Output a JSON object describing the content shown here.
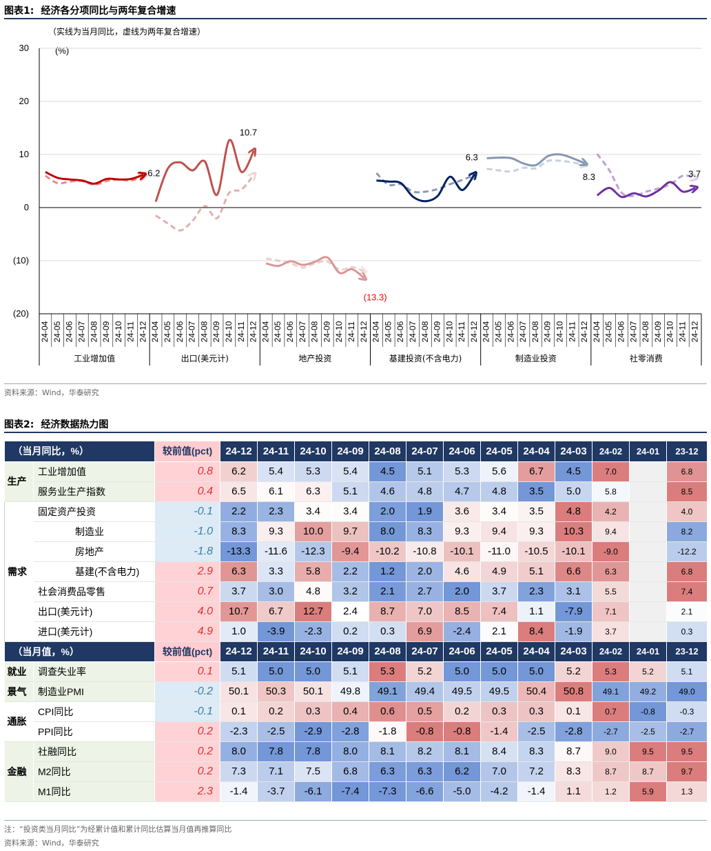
{
  "figure1": {
    "title_num": "图表1:",
    "title": "经济各分项同比与两年复合增速",
    "note": "（实线为当月同比，虚线为两年复合增速）",
    "source": "资料来源：Wind，华泰研究"
  },
  "figure2": {
    "title_num": "图表2:",
    "title": "经济数据热力图",
    "footnote": "注：“投资类当月同比”为经累计值和累计同比估算当月值再推算同比",
    "source": "资料来源：Wind，华泰研究"
  },
  "chart_data": [
    {
      "type": "line",
      "title": "经济各分项同比与两年复合增速",
      "subtitle": "（实线为当月同比，虚线为两年复合增速）",
      "ylabel": "(%)",
      "ylim": [
        -20,
        30
      ],
      "y_ticks": [
        30,
        20,
        10,
        0,
        -10,
        -20
      ],
      "y_tick_labels": [
        "30",
        "20",
        "10",
        "0",
        "(10)",
        "(20)"
      ],
      "months": [
        "24-04",
        "24-05",
        "24-06",
        "24-07",
        "24-08",
        "24-09",
        "24-10",
        "24-11",
        "24-12"
      ],
      "groups": [
        {
          "name": "工业增加值",
          "color": "#c00000",
          "solid": [
            6.7,
            5.6,
            5.3,
            5.1,
            4.5,
            5.4,
            5.3,
            5.4,
            6.2
          ],
          "dashed": [
            6.0,
            4.6,
            4.9,
            5.0,
            4.3,
            5.0,
            5.3,
            5.1,
            5.9
          ],
          "end_label": "6.2",
          "end_label_color": "#000000"
        },
        {
          "name": "出口(美元计)",
          "color": "#c0504d",
          "solid": [
            1.1,
            7.4,
            8.5,
            7.0,
            8.7,
            2.4,
            12.7,
            6.7,
            10.7
          ],
          "dashed": [
            -1.5,
            -3.0,
            -4.3,
            -2.5,
            0.3,
            -2.0,
            2.8,
            3.4,
            6.2
          ],
          "end_label": "10.7",
          "end_label_color": "#000000"
        },
        {
          "name": "地产投资",
          "color": "#d99694",
          "solid": [
            -10.5,
            -11.0,
            -10.1,
            -10.8,
            -10.2,
            -9.4,
            -12.3,
            -11.6,
            -13.3
          ],
          "dashed": [
            -9.6,
            -10.0,
            -10.5,
            -11.3,
            -10.5,
            -10.2,
            -11.7,
            -11.2,
            -12.0
          ],
          "end_label": "(13.3)",
          "end_label_color": "#ff0000"
        },
        {
          "name": "基建投资(不含电力)",
          "color": "#002060",
          "solid": [
            5.1,
            4.9,
            4.6,
            2.0,
            1.2,
            2.2,
            5.8,
            3.3,
            6.3
          ],
          "dashed": [
            6.5,
            4.3,
            4.4,
            3.0,
            3.0,
            3.5,
            4.4,
            5.2,
            6.1
          ],
          "end_label": "6.3",
          "end_label_color": "#000000"
        },
        {
          "name": "制造业投资",
          "color": "#8497b0",
          "solid": [
            9.3,
            9.4,
            9.3,
            8.3,
            8.0,
            9.7,
            10.0,
            9.3,
            8.3
          ],
          "dashed": [
            7.3,
            7.0,
            6.8,
            7.5,
            7.4,
            8.8,
            8.8,
            8.5,
            8.0
          ],
          "end_label": "8.3",
          "end_label_color": "#000000"
        },
        {
          "name": "社零消费",
          "color": "#7030a0",
          "solid": [
            2.3,
            3.7,
            2.0,
            2.7,
            2.1,
            3.2,
            4.8,
            3.0,
            3.7
          ],
          "dashed": [
            10.1,
            7.0,
            2.8,
            2.2,
            3.0,
            3.6,
            4.4,
            6.0,
            5.6
          ],
          "end_label": "3.7",
          "end_label_color": "#000000"
        }
      ]
    },
    {
      "type": "heatmap",
      "title": "经济数据热力图",
      "columns": [
        "24-12",
        "24-11",
        "24-10",
        "24-09",
        "24-08",
        "24-07",
        "24-06",
        "24-05",
        "24-04",
        "24-03",
        "24-02",
        "24-01",
        "23-12"
      ],
      "sections": [
        {
          "caption": "（当月同比，%）",
          "delta_header": "较前值(pct)",
          "groups": [
            {
              "name": "生产",
              "style": "prod",
              "rows": [
                {
                  "label": "工业增加值",
                  "indent": 1,
                  "delta": "0.8",
                  "values": [
                    "6.2",
                    "5.4",
                    "5.3",
                    "5.4",
                    "4.5",
                    "5.1",
                    "5.3",
                    "5.6",
                    "6.7",
                    "4.5",
                    "7.0",
                    "",
                    "6.8"
                  ]
                },
                {
                  "label": "服务业生产指数",
                  "indent": 1,
                  "delta": "0.4",
                  "values": [
                    "6.5",
                    "6.1",
                    "6.3",
                    "5.1",
                    "4.6",
                    "4.8",
                    "4.7",
                    "4.8",
                    "3.5",
                    "5.0",
                    "5.8",
                    "",
                    "8.5"
                  ]
                }
              ]
            },
            {
              "name": "需求",
              "style": "dem",
              "rows": [
                {
                  "label": "固定资产投资",
                  "indent": 1,
                  "delta": "-0.1",
                  "values": [
                    "2.2",
                    "2.3",
                    "3.4",
                    "3.4",
                    "2.0",
                    "1.9",
                    "3.6",
                    "3.4",
                    "3.5",
                    "4.8",
                    "4.2",
                    "",
                    "4.0"
                  ]
                },
                {
                  "label": "制造业",
                  "indent": 2,
                  "delta": "-1.0",
                  "values": [
                    "8.3",
                    "9.3",
                    "10.0",
                    "9.7",
                    "8.0",
                    "8.3",
                    "9.3",
                    "9.4",
                    "9.3",
                    "10.3",
                    "9.4",
                    "",
                    "8.2"
                  ]
                },
                {
                  "label": "房地产",
                  "indent": 2,
                  "delta": "-1.8",
                  "values": [
                    "-13.3",
                    "-11.6",
                    "-12.3",
                    "-9.4",
                    "-10.2",
                    "-10.8",
                    "-10.1",
                    "-11.0",
                    "-10.5",
                    "-10.1",
                    "-9.0",
                    "",
                    "-12.2"
                  ]
                },
                {
                  "label": "基建(不含电力)",
                  "indent": 2,
                  "delta": "2.9",
                  "values": [
                    "6.3",
                    "3.3",
                    "5.8",
                    "2.2",
                    "1.2",
                    "2.0",
                    "4.6",
                    "4.9",
                    "5.1",
                    "6.6",
                    "6.3",
                    "",
                    "6.8"
                  ]
                },
                {
                  "label": "社会消费品零售",
                  "indent": 1,
                  "delta": "0.7",
                  "values": [
                    "3.7",
                    "3.0",
                    "4.8",
                    "3.2",
                    "2.1",
                    "2.7",
                    "2.0",
                    "3.7",
                    "2.3",
                    "3.1",
                    "5.5",
                    "",
                    "7.4"
                  ]
                },
                {
                  "label": "出口(美元计)",
                  "indent": 1,
                  "delta": "4.0",
                  "values": [
                    "10.7",
                    "6.7",
                    "12.7",
                    "2.4",
                    "8.7",
                    "7.0",
                    "8.5",
                    "7.4",
                    "1.1",
                    "-7.9",
                    "7.1",
                    "",
                    "2.1"
                  ]
                },
                {
                  "label": "进口(美元计)",
                  "indent": 1,
                  "delta": "4.9",
                  "values": [
                    "1.0",
                    "-3.9",
                    "-2.3",
                    "0.2",
                    "0.3",
                    "6.9",
                    "-2.4",
                    "2.1",
                    "8.4",
                    "-1.9",
                    "3.7",
                    "",
                    "0.3"
                  ]
                }
              ]
            }
          ]
        },
        {
          "caption": "（当月值，%）",
          "delta_header": "较前值(pct)",
          "groups": [
            {
              "name": "就业",
              "style": "prod",
              "rows": [
                {
                  "label": "调查失业率",
                  "indent": 1,
                  "delta": "0.1",
                  "values": [
                    "5.1",
                    "5.0",
                    "5.0",
                    "5.1",
                    "5.3",
                    "5.2",
                    "5.0",
                    "5.0",
                    "5.0",
                    "5.2",
                    "5.3",
                    "5.2",
                    "5.1"
                  ]
                }
              ]
            },
            {
              "name": "景气",
              "style": "prod",
              "rows": [
                {
                  "label": "制造业PMI",
                  "indent": 1,
                  "delta": "-0.2",
                  "values": [
                    "50.1",
                    "50.3",
                    "50.1",
                    "49.8",
                    "49.1",
                    "49.4",
                    "49.5",
                    "49.5",
                    "50.4",
                    "50.8",
                    "49.1",
                    "49.2",
                    "49.0"
                  ]
                }
              ]
            },
            {
              "name": "通胀",
              "style": "mix",
              "rows": [
                {
                  "label": "CPI同比",
                  "indent": 1,
                  "delta": "-0.1",
                  "values": [
                    "0.1",
                    "0.2",
                    "0.3",
                    "0.4",
                    "0.6",
                    "0.5",
                    "0.2",
                    "0.3",
                    "0.3",
                    "0.1",
                    "0.7",
                    "-0.8",
                    "-0.3"
                  ]
                },
                {
                  "label": "PPI同比",
                  "indent": 1,
                  "delta": "0.2",
                  "values": [
                    "-2.3",
                    "-2.5",
                    "-2.9",
                    "-2.8",
                    "-1.8",
                    "-0.8",
                    "-0.8",
                    "-1.4",
                    "-2.5",
                    "-2.8",
                    "-2.7",
                    "-2.5",
                    "-2.7"
                  ]
                }
              ]
            },
            {
              "name": "金融",
              "style": "prod",
              "rows": [
                {
                  "label": "社融同比",
                  "indent": 1,
                  "delta": "0.2",
                  "values": [
                    "8.0",
                    "7.8",
                    "7.8",
                    "8.0",
                    "8.1",
                    "8.2",
                    "8.1",
                    "8.4",
                    "8.3",
                    "8.7",
                    "9.0",
                    "9.5",
                    "9.5"
                  ]
                },
                {
                  "label": "M2同比",
                  "indent": 1,
                  "delta": "0.2",
                  "values": [
                    "7.3",
                    "7.1",
                    "7.5",
                    "6.8",
                    "6.3",
                    "6.3",
                    "6.2",
                    "7.0",
                    "7.2",
                    "8.3",
                    "8.7",
                    "8.7",
                    "9.7"
                  ]
                },
                {
                  "label": "M1同比",
                  "indent": 1,
                  "delta": "2.3",
                  "values": [
                    "-1.4",
                    "-3.7",
                    "-6.1",
                    "-7.4",
                    "-7.3",
                    "-6.6",
                    "-5.0",
                    "-4.2",
                    "-1.4",
                    "1.1",
                    "1.2",
                    "5.9",
                    "1.3"
                  ]
                }
              ]
            }
          ]
        }
      ]
    }
  ]
}
